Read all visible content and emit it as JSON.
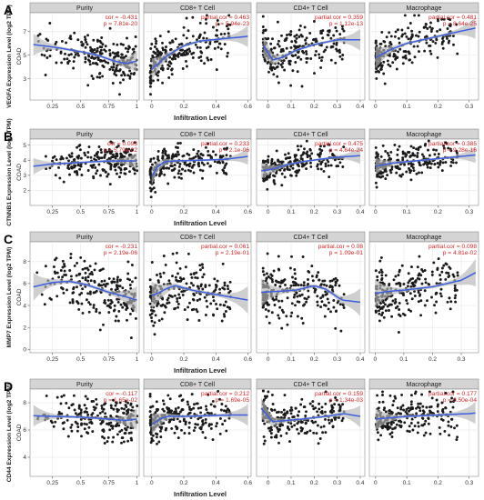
{
  "chart_data": [
    {
      "type": "scatter",
      "letter": "A",
      "ylabel": "VEGFA Expression Level (log2 TPM)",
      "side_label": "COAD",
      "xlabel": "Infiltration Level",
      "yticks": [
        3,
        5,
        7
      ],
      "ylim": [
        1.2,
        8.6
      ],
      "panels": [
        {
          "name": "Purity",
          "stat1": "cor = -0.431",
          "stat2": "p = 7.81e-20",
          "xlim": [
            0.05,
            1.02
          ],
          "xticks": [
            0.25,
            0.5,
            0.75,
            1.0
          ],
          "fit": {
            "x": [
              0.08,
              0.25,
              0.5,
              0.65,
              0.8,
              0.9,
              1.0
            ],
            "y": [
              5.9,
              5.7,
              5.3,
              5.0,
              4.5,
              4.3,
              4.5
            ]
          }
        },
        {
          "name": "CD8+ T Cell",
          "stat1": "partial.cor = 0.463",
          "stat2": "p = 5.94e-23",
          "xlim": [
            -0.05,
            0.62
          ],
          "xticks": [
            0.0,
            0.2,
            0.4,
            0.6
          ],
          "fit": {
            "x": [
              0.0,
              0.05,
              0.1,
              0.2,
              0.3,
              0.45,
              0.6
            ],
            "y": [
              3.8,
              4.4,
              5.0,
              5.8,
              6.2,
              6.4,
              6.6
            ]
          }
        },
        {
          "name": "CD4+ T Cell",
          "stat1": "partial.cor = 0.359",
          "stat2": "p = 1.12e-13",
          "xlim": [
            -0.05,
            0.42
          ],
          "xticks": [
            0.0,
            0.1,
            0.2,
            0.3,
            0.4
          ],
          "fit": {
            "x": [
              -0.02,
              0.02,
              0.06,
              0.12,
              0.2,
              0.3,
              0.4
            ],
            "y": [
              5.8,
              4.6,
              4.8,
              5.4,
              5.9,
              6.3,
              6.3
            ]
          }
        },
        {
          "name": "Macrophage",
          "stat1": "partial.cor = 0.481",
          "stat2": "p = 8.64e-25",
          "xlim": [
            -0.02,
            0.33
          ],
          "xticks": [
            0.0,
            0.1,
            0.2,
            0.3
          ],
          "fit": {
            "x": [
              0.0,
              0.05,
              0.1,
              0.15,
              0.2,
              0.25,
              0.32
            ],
            "y": [
              4.8,
              5.5,
              6.0,
              6.3,
              6.6,
              6.9,
              7.3
            ]
          }
        }
      ]
    },
    {
      "type": "scatter",
      "letter": "B",
      "ylabel": "CTNNB1 Expression Level (log2 TPM)",
      "side_label": "COAD",
      "xlabel": "Infiltration Level",
      "yticks": [
        2,
        3,
        4,
        5
      ],
      "ylim": [
        1.0,
        5.4
      ],
      "panels": [
        {
          "name": "Purity",
          "stat1": "cor = 0.093",
          "stat2": "p = 5.79e-02",
          "xlim": [
            0.05,
            1.02
          ],
          "xticks": [
            0.25,
            0.5,
            0.75,
            1.0
          ],
          "fit": {
            "x": [
              0.08,
              0.25,
              0.5,
              0.75,
              0.9,
              1.0
            ],
            "y": [
              3.6,
              3.75,
              3.85,
              3.95,
              3.95,
              3.95
            ]
          }
        },
        {
          "name": "CD8+ T Cell",
          "stat1": "partial.cor = 0.233",
          "stat2": "p = 2.1e-06",
          "xlim": [
            -0.05,
            0.62
          ],
          "xticks": [
            0.0,
            0.2,
            0.4,
            0.6
          ],
          "fit": {
            "x": [
              0.0,
              0.03,
              0.08,
              0.15,
              0.3,
              0.45,
              0.6
            ],
            "y": [
              2.9,
              3.5,
              3.9,
              3.95,
              4.0,
              4.05,
              4.25
            ]
          }
        },
        {
          "name": "CD4+ T Cell",
          "stat1": "partial.cor = 0.475",
          "stat2": "p = 4.64e-24",
          "xlim": [
            -0.05,
            0.42
          ],
          "xticks": [
            0.0,
            0.1,
            0.2,
            0.3,
            0.4
          ],
          "fit": {
            "x": [
              -0.03,
              0.02,
              0.08,
              0.15,
              0.22,
              0.3,
              0.4
            ],
            "y": [
              3.3,
              3.4,
              3.7,
              3.9,
              4.05,
              4.2,
              4.3
            ]
          }
        },
        {
          "name": "Macrophage",
          "stat1": "partial.cor = 0.385",
          "stat2": "p = 9.28e-16",
          "xlim": [
            -0.02,
            0.33
          ],
          "xticks": [
            0.0,
            0.1,
            0.2,
            0.3
          ],
          "fit": {
            "x": [
              0.0,
              0.05,
              0.1,
              0.15,
              0.2,
              0.25,
              0.32
            ],
            "y": [
              3.6,
              3.8,
              3.9,
              4.0,
              4.1,
              4.2,
              4.35
            ]
          }
        }
      ]
    },
    {
      "type": "scatter",
      "letter": "C",
      "ylabel": "MMP7 Expression Level (log2 TPM)",
      "side_label": "COAD",
      "xlabel": "Infiltration Level",
      "yticks": [
        0,
        2,
        4,
        6,
        8
      ],
      "ylim": [
        -0.3,
        9.8
      ],
      "panels": [
        {
          "name": "Purity",
          "stat1": "cor = -0.231",
          "stat2": "p = 2.19e-06",
          "xlim": [
            0.05,
            1.02
          ],
          "xticks": [
            0.25,
            0.5,
            0.75,
            1.0
          ],
          "fit": {
            "x": [
              0.08,
              0.25,
              0.4,
              0.55,
              0.75,
              0.9,
              1.0
            ],
            "y": [
              5.7,
              6.1,
              6.2,
              5.9,
              5.2,
              4.8,
              4.5
            ]
          }
        },
        {
          "name": "CD8+ T Cell",
          "stat1": "partial.cor = 0.061",
          "stat2": "p = 2.19e-01",
          "xlim": [
            -0.05,
            0.62
          ],
          "xticks": [
            0.0,
            0.2,
            0.4,
            0.6
          ],
          "fit": {
            "x": [
              0.0,
              0.05,
              0.1,
              0.15,
              0.25,
              0.4,
              0.6
            ],
            "y": [
              4.9,
              5.2,
              5.6,
              5.8,
              5.4,
              5.0,
              4.5
            ]
          }
        },
        {
          "name": "CD4+ T Cell",
          "stat1": "partial.cor = 0.08",
          "stat2": "p = 1.09e-01",
          "xlim": [
            -0.05,
            0.42
          ],
          "xticks": [
            0.0,
            0.1,
            0.2,
            0.3,
            0.4
          ],
          "fit": {
            "x": [
              -0.03,
              0.05,
              0.12,
              0.2,
              0.25,
              0.32,
              0.4
            ],
            "y": [
              5.2,
              5.3,
              5.4,
              5.8,
              5.5,
              4.5,
              4.3
            ]
          }
        },
        {
          "name": "Macrophage",
          "stat1": "partial.cor = 0.098",
          "stat2": "p = 4.81e-02",
          "xlim": [
            -0.02,
            0.36
          ],
          "xticks": [
            0.0,
            0.1,
            0.2,
            0.3
          ],
          "fit": {
            "x": [
              0.0,
              0.05,
              0.1,
              0.2,
              0.3,
              0.35
            ],
            "y": [
              5.1,
              5.3,
              5.4,
              5.7,
              6.3,
              7.0
            ]
          }
        }
      ]
    },
    {
      "type": "scatter",
      "letter": "D",
      "ylabel": "CD44 Expression Level (log2 TPM)",
      "side_label": "COAD",
      "xlabel": "Infiltration Level",
      "yticks": [
        4,
        6,
        8
      ],
      "ylim": [
        2.6,
        9.0
      ],
      "panels": [
        {
          "name": "Purity",
          "stat1": "cor = -0.117",
          "stat2": "p = 1.65e-02",
          "xlim": [
            0.05,
            1.02
          ],
          "xticks": [
            0.25,
            0.5,
            0.75,
            1.0
          ],
          "fit": {
            "x": [
              0.08,
              0.25,
              0.5,
              0.75,
              0.9,
              1.0
            ],
            "y": [
              7.05,
              7.0,
              6.95,
              6.8,
              6.7,
              6.8
            ]
          }
        },
        {
          "name": "CD8+ T Cell",
          "stat1": "partial.cor = 0.212",
          "stat2": "p = 1.69e-05",
          "xlim": [
            -0.05,
            0.62
          ],
          "xticks": [
            0.0,
            0.2,
            0.4,
            0.6
          ],
          "fit": {
            "x": [
              0.0,
              0.05,
              0.1,
              0.2,
              0.35,
              0.5,
              0.6
            ],
            "y": [
              6.4,
              6.8,
              7.0,
              7.0,
              7.05,
              7.1,
              7.1
            ]
          }
        },
        {
          "name": "CD4+ T Cell",
          "stat1": "partial.cor = 0.159",
          "stat2": "p = 1.34e-03",
          "xlim": [
            -0.05,
            0.42
          ],
          "xticks": [
            0.0,
            0.1,
            0.2,
            0.3,
            0.4
          ],
          "fit": {
            "x": [
              -0.03,
              0.02,
              0.08,
              0.15,
              0.25,
              0.33,
              0.4
            ],
            "y": [
              7.6,
              6.6,
              6.7,
              6.8,
              7.0,
              7.2,
              7.0
            ]
          }
        },
        {
          "name": "Macrophage",
          "stat1": "partial.cor = 0.177",
          "stat2": "p = 3.50e-04",
          "xlim": [
            -0.02,
            0.33
          ],
          "xticks": [
            0.0,
            0.1,
            0.2,
            0.3
          ],
          "fit": {
            "x": [
              0.0,
              0.05,
              0.1,
              0.2,
              0.3,
              0.32
            ],
            "y": [
              6.8,
              6.9,
              7.0,
              7.1,
              7.2,
              7.25
            ]
          }
        }
      ]
    }
  ],
  "colors": {
    "point": "#1a1a1a",
    "fit_line": "#3b5fe0",
    "ci_band": "#b5b5b5",
    "strip_bg": "#d4d4d4",
    "grid": "#ebebeb",
    "stat_text": "#d62728"
  }
}
